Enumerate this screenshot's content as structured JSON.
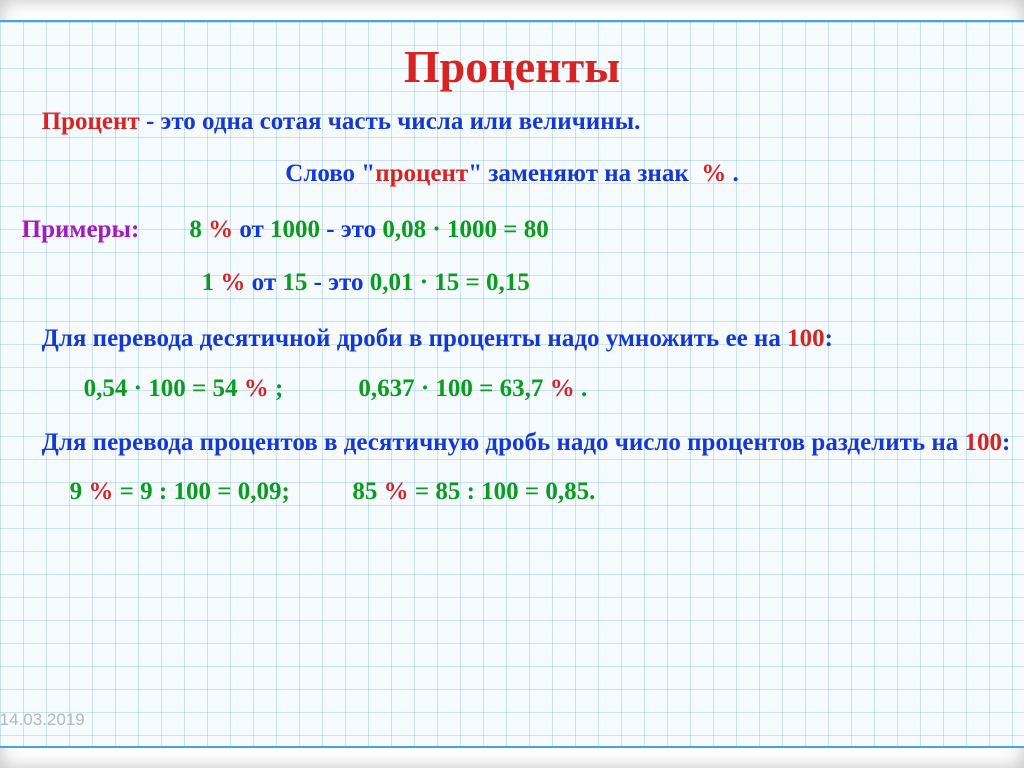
{
  "colors": {
    "red": "#d82323",
    "blue": "#1438d6",
    "green": "#0a9c1e",
    "purple": "#a31bbd",
    "text": "#202020"
  },
  "title": "Проценты",
  "def": [
    {
      "t": "Процент",
      "c": "red",
      "b": true
    },
    {
      "t": " - это одна сотая часть числа или величины.",
      "c": "blue",
      "b": true
    }
  ],
  "sign_line": [
    {
      "t": "Слово \"",
      "c": "blue",
      "b": true
    },
    {
      "t": "процент",
      "c": "red",
      "b": true
    },
    {
      "t": "\" заменяют на знак  ",
      "c": "blue",
      "b": true
    },
    {
      "t": "%",
      "c": "red",
      "b": true
    },
    {
      "t": " .",
      "c": "blue",
      "b": true
    }
  ],
  "examples_label": [
    {
      "t": "Примеры:",
      "c": "purple",
      "b": true
    },
    {
      "t": "        ",
      "c": "text"
    },
    {
      "t": "8 ",
      "c": "green",
      "b": true
    },
    {
      "t": "%",
      "c": "red",
      "b": true
    },
    {
      "t": " от ",
      "c": "blue",
      "b": true
    },
    {
      "t": "1000",
      "c": "green",
      "b": true
    },
    {
      "t": " - это ",
      "c": "blue",
      "b": true
    },
    {
      "t": "0,08 · 1000 = 80",
      "c": "green",
      "b": true
    }
  ],
  "example2": [
    {
      "t": "1 ",
      "c": "green",
      "b": true
    },
    {
      "t": "%",
      "c": "red",
      "b": true
    },
    {
      "t": " от ",
      "c": "blue",
      "b": true
    },
    {
      "t": "15",
      "c": "green",
      "b": true
    },
    {
      "t": " - это ",
      "c": "blue",
      "b": true
    },
    {
      "t": "0,01 · 15 = 0,15",
      "c": "green",
      "b": true
    }
  ],
  "rule1": [
    {
      "t": "Для перевода десятичной дроби в проценты надо умножить ее на ",
      "c": "blue",
      "b": true
    },
    {
      "t": "100",
      "c": "red",
      "b": true
    },
    {
      "t": ":",
      "c": "blue",
      "b": true
    }
  ],
  "rule1_examples": [
    {
      "t": "0,54 · 100 = 54 ",
      "c": "green",
      "b": true
    },
    {
      "t": "%",
      "c": "red",
      "b": true
    },
    {
      "t": " ;",
      "c": "green",
      "b": true
    },
    {
      "t": "            ",
      "c": "text"
    },
    {
      "t": "0,637 · 100 = 63,7 ",
      "c": "green",
      "b": true
    },
    {
      "t": "%",
      "c": "red",
      "b": true
    },
    {
      "t": " .",
      "c": "green",
      "b": true
    }
  ],
  "rule2": [
    {
      "t": "Для перевода процентов в десятичную дробь надо число процентов разделить на ",
      "c": "blue",
      "b": true
    },
    {
      "t": "100",
      "c": "red",
      "b": true
    },
    {
      "t": ":",
      "c": "blue",
      "b": true
    }
  ],
  "rule2_examples": [
    {
      "t": "9 ",
      "c": "green",
      "b": true
    },
    {
      "t": "%",
      "c": "red",
      "b": true
    },
    {
      "t": " = 9 : 100 = 0,09;",
      "c": "green",
      "b": true
    },
    {
      "t": "          ",
      "c": "text"
    },
    {
      "t": "85 ",
      "c": "green",
      "b": true
    },
    {
      "t": "%",
      "c": "red",
      "b": true
    },
    {
      "t": " = 85 : 100 = 0,85.",
      "c": "green",
      "b": true
    }
  ],
  "date": "14.03.2019"
}
